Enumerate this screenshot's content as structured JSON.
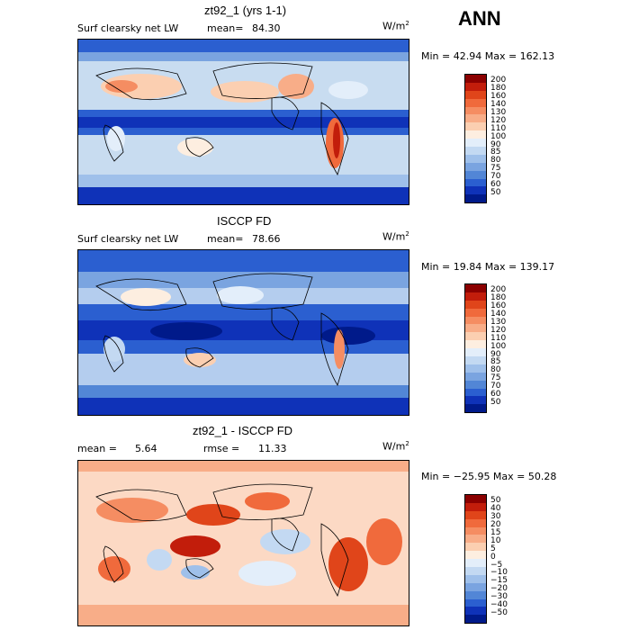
{
  "season": "ANN",
  "panels": [
    {
      "title": "zt92_1 (yrs 1-1)",
      "left_label": "Surf clearsky net LW",
      "mean_label": "mean=",
      "mean_value": "84.30",
      "rmse_label": "",
      "rmse_value": "",
      "units": "W/m",
      "units_sup": "2",
      "minmax": "Min =  42.94 Max = 162.13",
      "bg": "#c8dcf0",
      "colorbar_labels": [
        "200",
        "180",
        "160",
        "140",
        "130",
        "120",
        "110",
        "100",
        "90",
        "85",
        "80",
        "75",
        "70",
        "60",
        "50"
      ],
      "colorbar_colors": [
        "#8b0000",
        "#c21d0b",
        "#e0451a",
        "#f06a3c",
        "#f58d62",
        "#f8ad88",
        "#fbcfb1",
        "#fdeee0",
        "#e3eefa",
        "#c3d9f2",
        "#9fc0ea",
        "#7aa4e0",
        "#5286d6",
        "#2b5fd0",
        "#0f32b8",
        "#001a8a"
      ]
    },
    {
      "title": "ISCCP FD",
      "left_label": "Surf clearsky net LW",
      "mean_label": "mean=",
      "mean_value": "78.66",
      "rmse_label": "",
      "rmse_value": "",
      "units": "W/m",
      "units_sup": "2",
      "minmax": "Min =  19.84 Max = 139.17",
      "bg": "#b4cdee",
      "colorbar_labels": [
        "200",
        "180",
        "160",
        "140",
        "130",
        "120",
        "110",
        "100",
        "90",
        "85",
        "80",
        "75",
        "70",
        "60",
        "50"
      ],
      "colorbar_colors": [
        "#8b0000",
        "#c21d0b",
        "#e0451a",
        "#f06a3c",
        "#f58d62",
        "#f8ad88",
        "#fbcfb1",
        "#fdeee0",
        "#e3eefa",
        "#c3d9f2",
        "#9fc0ea",
        "#7aa4e0",
        "#5286d6",
        "#2b5fd0",
        "#0f32b8",
        "#001a8a"
      ]
    },
    {
      "title": "zt92_1 - ISCCP FD",
      "left_label": "",
      "mean_label": "mean =",
      "mean_value": "5.64",
      "rmse_label": "rmse =",
      "rmse_value": "11.33",
      "units": "W/m",
      "units_sup": "2",
      "minmax": "Min = −25.95 Max =  50.28",
      "bg": "#fcd9c4",
      "colorbar_labels": [
        "50",
        "40",
        "30",
        "20",
        "15",
        "10",
        "5",
        "0",
        "−5",
        "−10",
        "−15",
        "−20",
        "−30",
        "−40",
        "−50"
      ],
      "colorbar_colors": [
        "#8b0000",
        "#c21d0b",
        "#e0451a",
        "#f06a3c",
        "#f58d62",
        "#f8ad88",
        "#fbcfb1",
        "#fdeee0",
        "#e3eefa",
        "#c3d9f2",
        "#9fc0ea",
        "#7aa4e0",
        "#5286d6",
        "#2b5fd0",
        "#0f32b8",
        "#001a8a"
      ]
    }
  ]
}
